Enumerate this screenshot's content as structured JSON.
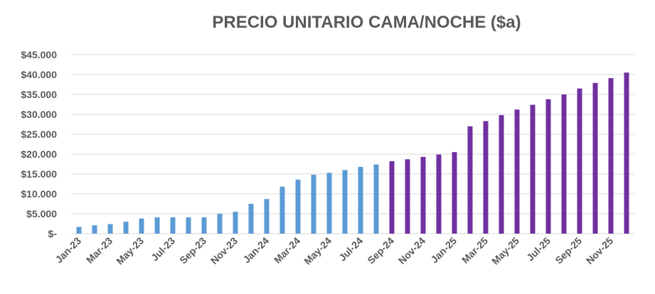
{
  "chart_data": {
    "type": "bar",
    "title": "PRECIO UNITARIO CAMA/NOCHE ($a)",
    "xlabel": "",
    "ylabel": "",
    "ylim": [
      0,
      45000
    ],
    "y_ticks": [
      0,
      5000,
      10000,
      15000,
      20000,
      25000,
      30000,
      35000,
      40000,
      45000
    ],
    "y_tick_labels": [
      "$-",
      "$5.000",
      "$10.000",
      "$15.000",
      "$20.000",
      "$25.000",
      "$30.000",
      "$35.000",
      "$40.000",
      "$45.000"
    ],
    "grid": true,
    "legend": "none",
    "categories": [
      "Jan-23",
      "Feb-23",
      "Mar-23",
      "Apr-23",
      "May-23",
      "Jun-23",
      "Jul-23",
      "Aug-23",
      "Sep-23",
      "Oct-23",
      "Nov-23",
      "Dec-23",
      "Jan-24",
      "Feb-24",
      "Mar-24",
      "Apr-24",
      "May-24",
      "Jun-24",
      "Jul-24",
      "Aug-24",
      "Sep-24",
      "Oct-24",
      "Nov-24",
      "Dec-24",
      "Jan-25",
      "Feb-25",
      "Mar-25",
      "Apr-25",
      "May-25",
      "Jun-25",
      "Jul-25",
      "Aug-25",
      "Sep-25",
      "Oct-25",
      "Nov-25",
      "Dec-25"
    ],
    "x_tick_labels": [
      "Jan-23",
      "Mar-23",
      "May-23",
      "Jul-23",
      "Sep-23",
      "Nov-23",
      "Jan-24",
      "Mar-24",
      "May-24",
      "Jul-24",
      "Sep-24",
      "Nov-24",
      "Jan-25",
      "Mar-25",
      "May-25",
      "Jul-25",
      "Sep-25",
      "Nov-25"
    ],
    "values": [
      1700,
      2100,
      2400,
      3000,
      3800,
      4100,
      4100,
      4100,
      4100,
      5000,
      5500,
      7500,
      8700,
      11800,
      13600,
      14800,
      15300,
      16000,
      16800,
      17400,
      18200,
      18700,
      19300,
      19900,
      20500,
      27000,
      28300,
      29800,
      31200,
      32400,
      33800,
      35000,
      36500,
      37900,
      39100,
      40500
    ],
    "colors": {
      "historical": "#5B9BD5",
      "projected": "#7030A0",
      "gridline": "#D9D9D9",
      "text": "#595959"
    },
    "color_split_index": 20
  }
}
